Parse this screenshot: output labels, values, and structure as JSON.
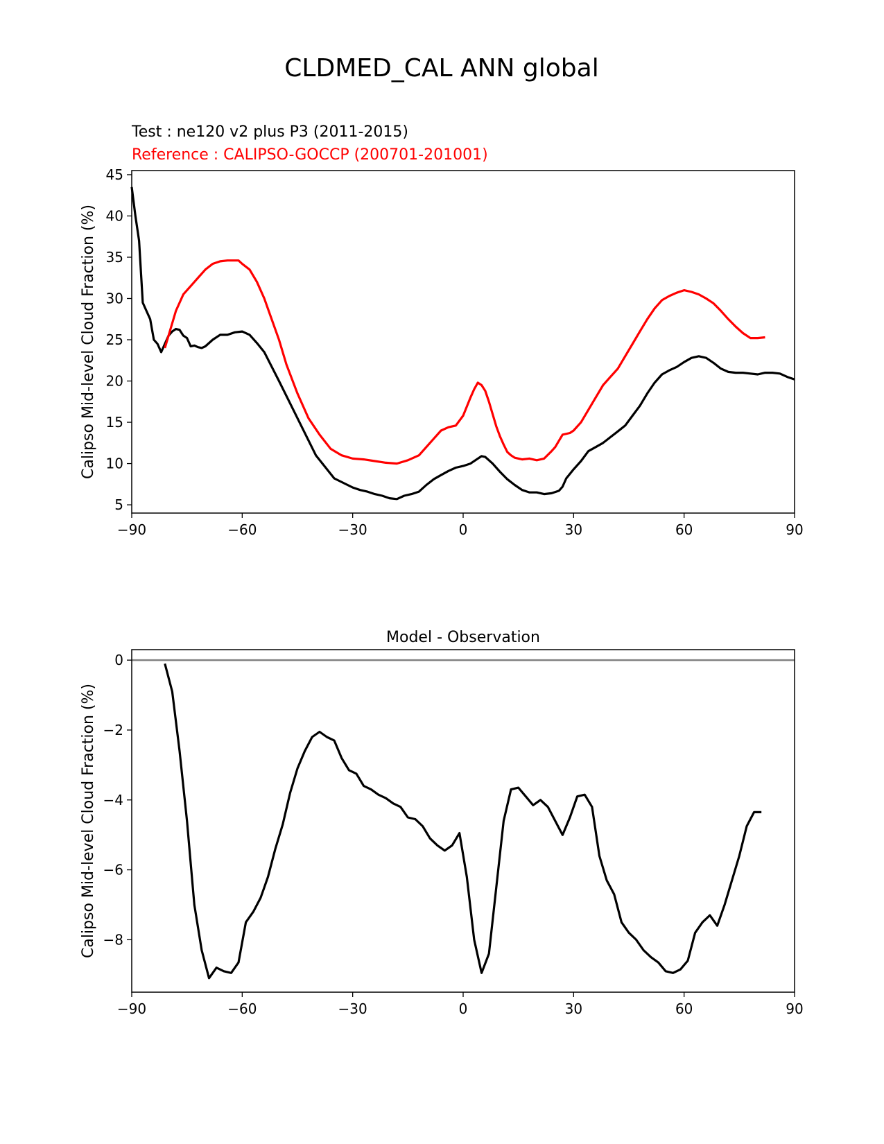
{
  "figure": {
    "title": "CLDMED_CAL ANN global"
  },
  "chart_data": [
    {
      "type": "line",
      "test_label": "Test : ne120 v2 plus P3 (2011-2015)",
      "reference_label": "Reference : CALIPSO-GOCCP (200701-201001)",
      "xlabel": "",
      "ylabel": "Calipso Mid-level Cloud Fraction (%)",
      "xlim": [
        -90,
        90
      ],
      "ylim": [
        4,
        45.5
      ],
      "xticks": [
        -90,
        -60,
        -30,
        0,
        30,
        60,
        90
      ],
      "xtick_labels": [
        "−90",
        "−60",
        "−30",
        "0",
        "30",
        "60",
        "90"
      ],
      "yticks": [
        5,
        10,
        15,
        20,
        25,
        30,
        35,
        40,
        45
      ],
      "ytick_labels": [
        "5",
        "10",
        "15",
        "20",
        "25",
        "30",
        "35",
        "40",
        "45"
      ],
      "grid": false,
      "series": [
        {
          "color": "#000000",
          "x": [
            -90,
            -89,
            -88,
            -87,
            -86,
            -85,
            -84,
            -83,
            -82,
            -81,
            -80,
            -79,
            -78,
            -77,
            -76,
            -75,
            -74,
            -73,
            -72,
            -71,
            -70,
            -68,
            -66,
            -64,
            -62,
            -60,
            -58,
            -56,
            -54,
            -50,
            -45,
            -40,
            -35,
            -30,
            -28,
            -26,
            -24,
            -22,
            -20,
            -18,
            -16,
            -14,
            -12,
            -10,
            -8,
            -6,
            -4,
            -2,
            0,
            2,
            4,
            5,
            6,
            8,
            10,
            12,
            14,
            16,
            18,
            20,
            22,
            24,
            26,
            27,
            28,
            30,
            32,
            34,
            36,
            38,
            40,
            42,
            44,
            46,
            48,
            50,
            52,
            54,
            56,
            58,
            60,
            62,
            64,
            66,
            68,
            70,
            72,
            74,
            76,
            78,
            80,
            82,
            84,
            86,
            88,
            90
          ],
          "y": [
            43.5,
            40.0,
            37.0,
            29.5,
            28.5,
            27.5,
            25.0,
            24.5,
            23.5,
            24.5,
            25.5,
            26.0,
            26.3,
            26.2,
            25.5,
            25.2,
            24.2,
            24.3,
            24.1,
            24.0,
            24.2,
            25.0,
            25.6,
            25.6,
            25.9,
            26.0,
            25.6,
            24.6,
            23.5,
            20.0,
            15.5,
            11.0,
            8.2,
            7.1,
            6.8,
            6.6,
            6.3,
            6.1,
            5.8,
            5.7,
            6.1,
            6.3,
            6.6,
            7.4,
            8.1,
            8.6,
            9.1,
            9.5,
            9.7,
            10.0,
            10.6,
            10.9,
            10.8,
            10.0,
            9.0,
            8.1,
            7.4,
            6.8,
            6.5,
            6.5,
            6.3,
            6.4,
            6.7,
            7.2,
            8.2,
            9.3,
            10.3,
            11.5,
            12.0,
            12.5,
            13.2,
            13.9,
            14.6,
            15.8,
            17.0,
            18.5,
            19.8,
            20.8,
            21.3,
            21.7,
            22.3,
            22.8,
            23.0,
            22.8,
            22.2,
            21.5,
            21.1,
            21.0,
            21.0,
            20.9,
            20.8,
            21.0,
            21.0,
            20.9,
            20.5,
            20.2
          ]
        },
        {
          "color": "#ff0000",
          "x": [
            -81,
            -80,
            -78,
            -76,
            -74,
            -72,
            -70,
            -68,
            -66,
            -64,
            -61,
            -60,
            -58,
            -56,
            -54,
            -52,
            -50,
            -48,
            -45,
            -42,
            -39,
            -36,
            -33,
            -30,
            -27,
            -24,
            -21,
            -18,
            -15,
            -12,
            -9,
            -6,
            -4,
            -2,
            0,
            2,
            3,
            4,
            5,
            6,
            7,
            8,
            9,
            10,
            11,
            12,
            13,
            14,
            16,
            18,
            20,
            22,
            24,
            25,
            27,
            29,
            30,
            32,
            34,
            36,
            38,
            40,
            42,
            44,
            46,
            48,
            50,
            52,
            54,
            56,
            58,
            60,
            62,
            64,
            66,
            68,
            70,
            72,
            74,
            76,
            78,
            80,
            82
          ],
          "y": [
            24.0,
            25.5,
            28.5,
            30.5,
            31.5,
            32.5,
            33.5,
            34.2,
            34.5,
            34.6,
            34.6,
            34.2,
            33.5,
            32.0,
            30.0,
            27.5,
            25.0,
            22.0,
            18.5,
            15.5,
            13.5,
            11.8,
            11.0,
            10.6,
            10.5,
            10.3,
            10.1,
            10.0,
            10.4,
            11.0,
            12.5,
            14.0,
            14.4,
            14.6,
            15.8,
            18.0,
            19.0,
            19.8,
            19.5,
            18.8,
            17.5,
            16.0,
            14.5,
            13.3,
            12.3,
            11.4,
            11.0,
            10.7,
            10.5,
            10.6,
            10.4,
            10.6,
            11.5,
            12.0,
            13.5,
            13.7,
            14.0,
            15.0,
            16.5,
            18.0,
            19.5,
            20.5,
            21.5,
            23.0,
            24.5,
            26.0,
            27.5,
            28.8,
            29.8,
            30.3,
            30.7,
            31.0,
            30.8,
            30.5,
            30.0,
            29.4,
            28.5,
            27.5,
            26.6,
            25.8,
            25.2,
            25.2,
            25.3
          ]
        }
      ]
    },
    {
      "type": "line",
      "title": "Model - Observation",
      "xlabel": "",
      "ylabel": "Calipso Mid-level Cloud Fraction (%)",
      "xlim": [
        -90,
        90
      ],
      "ylim": [
        -9.5,
        0.3
      ],
      "xticks": [
        -90,
        -60,
        -30,
        0,
        30,
        60,
        90
      ],
      "xtick_labels": [
        "−90",
        "−60",
        "−30",
        "0",
        "30",
        "60",
        "90"
      ],
      "yticks": [
        -8,
        -6,
        -4,
        -2,
        0
      ],
      "ytick_labels": [
        "−8",
        "−6",
        "−4",
        "−2",
        "0"
      ],
      "zero_line": 0,
      "zero_line_color": "#808080",
      "grid": false,
      "series": [
        {
          "color": "#000000",
          "x": [
            -81,
            -79,
            -77,
            -75,
            -73,
            -71,
            -69,
            -67,
            -65,
            -63,
            -61,
            -59,
            -57,
            -55,
            -53,
            -51,
            -49,
            -47,
            -45,
            -43,
            -41,
            -39,
            -37,
            -35,
            -33,
            -31,
            -29,
            -27,
            -25,
            -23,
            -21,
            -19,
            -17,
            -15,
            -13,
            -11,
            -9,
            -7,
            -5,
            -3,
            -1,
            1,
            3,
            5,
            7,
            9,
            11,
            13,
            15,
            17,
            19,
            21,
            23,
            25,
            27,
            29,
            31,
            33,
            35,
            37,
            39,
            41,
            43,
            45,
            47,
            49,
            51,
            53,
            55,
            57,
            59,
            61,
            63,
            65,
            67,
            69,
            71,
            73,
            75,
            77,
            79,
            81
          ],
          "y": [
            -0.1,
            -0.9,
            -2.6,
            -4.6,
            -7.0,
            -8.3,
            -9.1,
            -8.8,
            -8.9,
            -8.95,
            -8.65,
            -7.5,
            -7.2,
            -6.8,
            -6.2,
            -5.4,
            -4.7,
            -3.8,
            -3.1,
            -2.6,
            -2.2,
            -2.05,
            -2.2,
            -2.3,
            -2.8,
            -3.15,
            -3.25,
            -3.6,
            -3.7,
            -3.85,
            -3.95,
            -4.1,
            -4.2,
            -4.5,
            -4.55,
            -4.75,
            -5.1,
            -5.3,
            -5.45,
            -5.3,
            -4.95,
            -6.2,
            -8.0,
            -8.95,
            -8.4,
            -6.5,
            -4.6,
            -3.7,
            -3.65,
            -3.9,
            -4.15,
            -4.0,
            -4.2,
            -4.6,
            -5.0,
            -4.5,
            -3.9,
            -3.85,
            -4.2,
            -5.6,
            -6.3,
            -6.7,
            -7.5,
            -7.8,
            -8.0,
            -8.3,
            -8.5,
            -8.65,
            -8.9,
            -8.95,
            -8.85,
            -8.6,
            -7.8,
            -7.5,
            -7.3,
            -7.6,
            -7.0,
            -6.3,
            -5.6,
            -4.75,
            -4.35,
            -4.35
          ]
        }
      ]
    }
  ]
}
